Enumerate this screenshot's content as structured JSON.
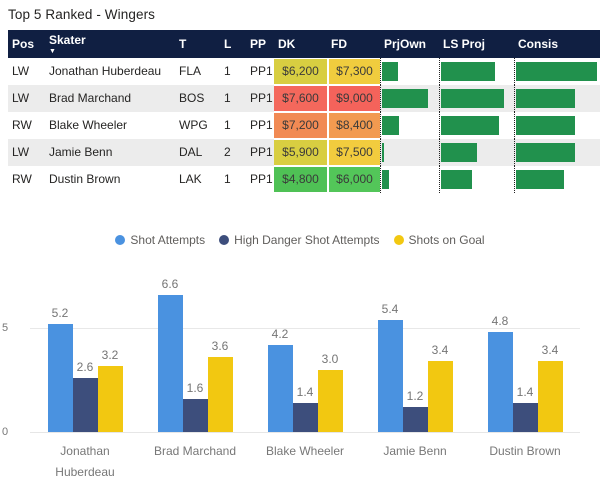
{
  "title": "Top 5 Ranked - Wingers",
  "table": {
    "columns": [
      {
        "key": "pos",
        "label": "Pos"
      },
      {
        "key": "skater",
        "label": "Skater",
        "sorted": true
      },
      {
        "key": "t",
        "label": "T"
      },
      {
        "key": "l",
        "label": "L"
      },
      {
        "key": "pp",
        "label": "PP"
      },
      {
        "key": "dk",
        "label": "DK"
      },
      {
        "key": "fd",
        "label": "FD"
      },
      {
        "key": "prjown",
        "label": "PrjOwn"
      },
      {
        "key": "lsproj",
        "label": "LS Proj"
      },
      {
        "key": "consis",
        "label": "Consis"
      }
    ],
    "sort_indicator": "▼",
    "header_bg": "#101f42",
    "alt_row_bg": "#ececec",
    "databar_color": "#21914d",
    "rows": [
      {
        "pos": "LW",
        "skater": "Jonathan Huberdeau",
        "t": "FLA",
        "l": "1",
        "pp": "PP1",
        "dk": "$6,200",
        "fd": "$7,300",
        "dk_color": "#d8ce41",
        "fd_color": "#f0cc3e",
        "prjown_pct": 28,
        "lsproj_pct": 73,
        "consis_pct": 95
      },
      {
        "pos": "LW",
        "skater": "Brad Marchand",
        "t": "BOS",
        "l": "1",
        "pp": "PP1",
        "dk": "$7,600",
        "fd": "$9,000",
        "dk_color": "#f4685c",
        "fd_color": "#f4635b",
        "prjown_pct": 79,
        "lsproj_pct": 85,
        "consis_pct": 69
      },
      {
        "pos": "RW",
        "skater": "Blake Wheeler",
        "t": "WPG",
        "l": "1",
        "pp": "PP1",
        "dk": "$7,200",
        "fd": "$8,400",
        "dk_color": "#f18a54",
        "fd_color": "#f29a50",
        "prjown_pct": 30,
        "lsproj_pct": 78,
        "consis_pct": 69
      },
      {
        "pos": "LW",
        "skater": "Jamie Benn",
        "t": "DAL",
        "l": "2",
        "pp": "PP1",
        "dk": "$5,900",
        "fd": "$7,500",
        "dk_color": "#d8ce41",
        "fd_color": "#f2cc3e",
        "prjown_pct": 4,
        "lsproj_pct": 48,
        "consis_pct": 69
      },
      {
        "pos": "RW",
        "skater": "Dustin Brown",
        "t": "LAK",
        "l": "1",
        "pp": "PP1",
        "dk": "$4,800",
        "fd": "$6,000",
        "dk_color": "#4fc155",
        "fd_color": "#53c659",
        "prjown_pct": 12,
        "lsproj_pct": 42,
        "consis_pct": 57
      }
    ]
  },
  "chart_data": {
    "type": "bar",
    "categories": [
      "Jonathan Huberdeau",
      "Brad Marchand",
      "Blake Wheeler",
      "Jamie Benn",
      "Dustin Brown"
    ],
    "series": [
      {
        "name": "Shot Attempts",
        "color": "#4a92e0",
        "values": [
          5.2,
          6.6,
          4.2,
          5.4,
          4.8
        ]
      },
      {
        "name": "High Danger Shot Attempts",
        "color": "#3d4e7c",
        "values": [
          2.6,
          1.6,
          1.4,
          1.2,
          1.4
        ]
      },
      {
        "name": "Shots on Goal",
        "color": "#f2c811",
        "values": [
          3.2,
          3.6,
          3.0,
          3.4,
          3.4
        ]
      }
    ],
    "y_ticks": [
      0,
      5
    ],
    "ylim": [
      0,
      8
    ],
    "grid": true,
    "legend_position": "top",
    "data_labels": true,
    "title": "",
    "xlabel": "",
    "ylabel": ""
  }
}
